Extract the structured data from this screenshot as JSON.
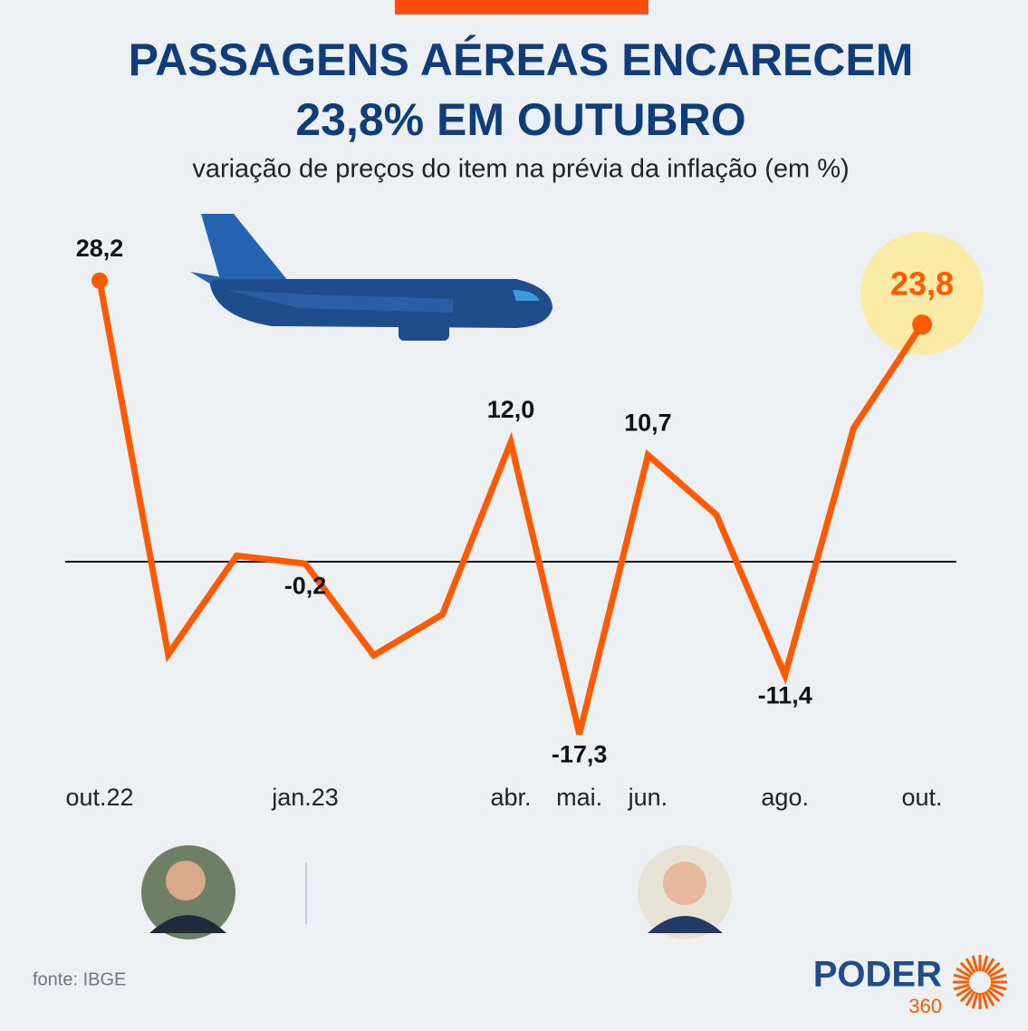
{
  "chart_data": {
    "type": "line",
    "title": [
      "PASSAGENS AÉREAS ENCARECEM",
      "23,8% EM OUTUBRO"
    ],
    "subtitle": "variação de preços do item na prévia da inflação (em %)",
    "categories": [
      "out.22",
      null,
      null,
      "jan.23",
      null,
      null,
      "abr.",
      "mai.",
      "jun.",
      null,
      "ago.",
      null,
      "out."
    ],
    "series": [
      {
        "name": null,
        "color": "#ff5a00",
        "values": [
          28.2,
          -9.3,
          0.6,
          -0.2,
          -9.4,
          -5.3,
          12.0,
          -17.3,
          10.7,
          4.7,
          -11.4,
          13.4,
          23.8
        ],
        "value_labels": [
          "28,2",
          null,
          null,
          "-0,2",
          null,
          null,
          "12,0",
          "-17,3",
          "10,7",
          null,
          "-11,4",
          null,
          "23,8"
        ]
      }
    ],
    "source": "fonte: IBGE",
    "logo": [
      "PODER",
      "360"
    ]
  }
}
